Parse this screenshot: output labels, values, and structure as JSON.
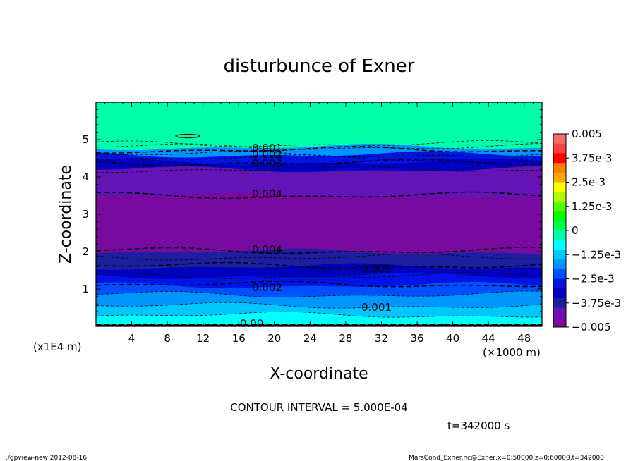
{
  "chart_data": {
    "type": "contour",
    "title": "disturbunce of Exner",
    "xlabel": "X-coordinate",
    "ylabel": "Z-coordinate",
    "x_unit_label": "(×1000 m)",
    "y_unit_label": "(x1E4 m)",
    "xlim": [
      0,
      50
    ],
    "ylim": [
      0,
      6
    ],
    "x_ticks": [
      "4",
      "8",
      "12",
      "16",
      "20",
      "24",
      "28",
      "32",
      "36",
      "40",
      "44",
      "48"
    ],
    "y_ticks": [
      "1",
      "2",
      "3",
      "4",
      "5"
    ],
    "colorbar": {
      "min": -0.005,
      "max": 0.005,
      "labels": [
        "0.005",
        "3.75e-3",
        "2.5e-3",
        "1.25e-3",
        "0",
        "−1.25e-3",
        "−2.5e-3",
        "−3.75e-3",
        "−0.005"
      ],
      "colors": [
        "#f86a6a",
        "#ff4040",
        "#ff0000",
        "#ff7f00",
        "#ffaa00",
        "#ffff00",
        "#aaff00",
        "#55ff00",
        "#00ff00",
        "#00ff55",
        "#00ffaa",
        "#00ffff",
        "#00c8ff",
        "#0096ff",
        "#0050ff",
        "#0014e6",
        "#0000be",
        "#1e1ea0",
        "#6414b4",
        "#780aa0"
      ]
    },
    "contour_labels": [
      "0.001",
      "0.002",
      "0.003",
      "0.004",
      "0.004",
      "0.003",
      "0.002",
      "0.001",
      "0.00"
    ],
    "layers": [
      {
        "z_bottom": 0.0,
        "z_top": 0.05,
        "value": 0.0
      },
      {
        "z_bottom": 0.05,
        "z_top": 0.3,
        "value": -0.0006
      },
      {
        "z_bottom": 0.3,
        "z_top": 0.55,
        "value": -0.0012
      },
      {
        "z_bottom": 0.55,
        "z_top": 0.85,
        "value": -0.0018
      },
      {
        "z_bottom": 0.85,
        "z_top": 1.1,
        "value": -0.0024
      },
      {
        "z_bottom": 1.1,
        "z_top": 1.35,
        "value": -0.0028
      },
      {
        "z_bottom": 1.35,
        "z_top": 1.6,
        "value": -0.0032
      },
      {
        "z_bottom": 1.6,
        "z_top": 2.0,
        "value": -0.0038
      },
      {
        "z_bottom": 2.0,
        "z_top": 3.5,
        "value": -0.0046
      },
      {
        "z_bottom": 3.5,
        "z_top": 4.2,
        "value": -0.0041
      },
      {
        "z_bottom": 4.2,
        "z_top": 4.4,
        "value": -0.0034
      },
      {
        "z_bottom": 4.4,
        "z_top": 4.6,
        "value": -0.0026
      },
      {
        "z_bottom": 4.6,
        "z_top": 4.8,
        "value": -0.0015
      },
      {
        "z_bottom": 4.8,
        "z_top": 6.0,
        "value": 0.0
      }
    ]
  },
  "contour_interval": "CONTOUR INTERVAL = 5.000E-04",
  "time_label": "t=342000 s",
  "footer_left": "./gpview-new  2012-08-16",
  "footer_right": "MarsCond_Exner.nc@Exner,x=0:50000,z=0:60000,t=342000"
}
